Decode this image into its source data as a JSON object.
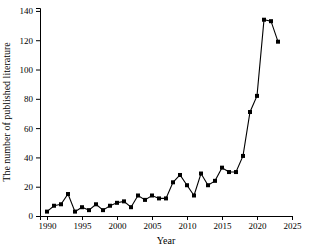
{
  "chart_data": {
    "type": "line",
    "x_label": "Year",
    "y_label": "The number of published literature",
    "x": [
      1990,
      1991,
      1992,
      1993,
      1994,
      1995,
      1996,
      1997,
      1998,
      1999,
      2000,
      2001,
      2002,
      2003,
      2004,
      2005,
      2006,
      2007,
      2008,
      2009,
      2010,
      2011,
      2012,
      2013,
      2014,
      2015,
      2016,
      2017,
      2018,
      2019,
      2020,
      2021,
      2022,
      2023
    ],
    "values": [
      3,
      7,
      8,
      15,
      3,
      6,
      4,
      8,
      4,
      7,
      9,
      10,
      6,
      14,
      11,
      14,
      12,
      12,
      23,
      28,
      21,
      14,
      29,
      21,
      24,
      33,
      30,
      30,
      41,
      71,
      82,
      134,
      133,
      119
    ],
    "color": "#000000",
    "marker": "square",
    "line_style": "solid",
    "xlim": [
      1989,
      2025
    ],
    "xticks": [
      1990,
      1995,
      2000,
      2005,
      2010,
      2015,
      2020,
      2025
    ],
    "ylim": [
      0,
      142
    ],
    "yticks": [
      0,
      20,
      40,
      60,
      80,
      100,
      120,
      140
    ],
    "grid": false
  }
}
